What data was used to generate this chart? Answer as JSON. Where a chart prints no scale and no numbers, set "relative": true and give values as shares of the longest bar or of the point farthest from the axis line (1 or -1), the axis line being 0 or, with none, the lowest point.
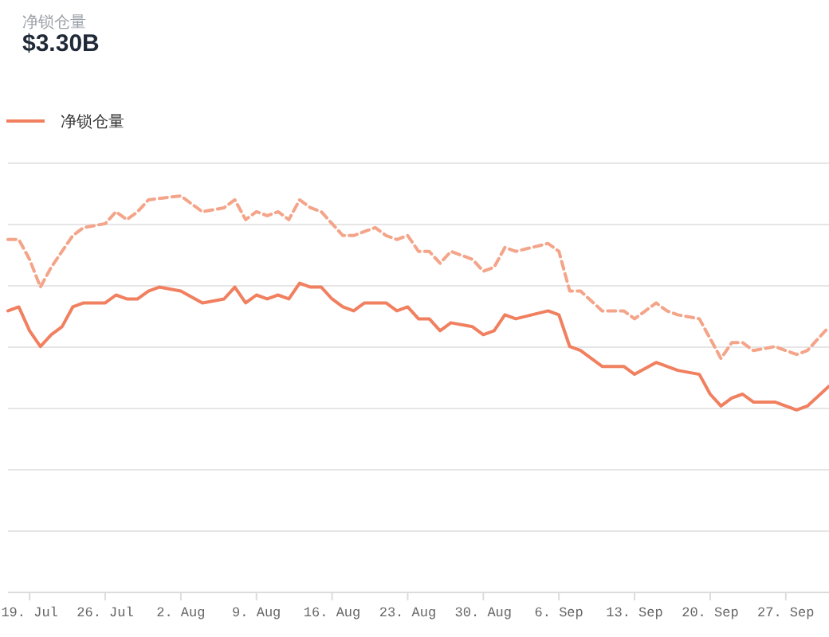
{
  "chart_data": {
    "type": "line",
    "title": "净锁仓量",
    "subtitle": "$3.30B",
    "relative": true,
    "grid": "y",
    "legend": "top left",
    "marker": "none",
    "xlim": [
      "--07-17",
      "--10-01"
    ],
    "xticks": [
      {
        "value": "--07-19",
        "label": "19. Jul"
      },
      {
        "value": "--07-26",
        "label": "26. Jul"
      },
      {
        "value": "--08-02",
        "label": "2. Aug"
      },
      {
        "value": "--08-09",
        "label": "9. Aug"
      },
      {
        "value": "--08-16",
        "label": "16. Aug"
      },
      {
        "value": "--08-23",
        "label": "23. Aug"
      },
      {
        "value": "--08-30",
        "label": "30. Aug"
      },
      {
        "value": "--09-06",
        "label": "6. Sep"
      },
      {
        "value": "--09-13",
        "label": "13. Sep"
      },
      {
        "value": "--09-20",
        "label": "20. Sep"
      },
      {
        "value": "--09-27",
        "label": "27. Sep"
      }
    ],
    "series": [
      {
        "name": "净锁仓量",
        "color": "#f0805f",
        "line_style": "solid",
        "x": [
          "--07-17",
          "--07-18",
          "--07-19",
          "--07-20",
          "--07-21",
          "--07-22",
          "--07-23",
          "--07-24",
          "--07-26",
          "--07-27",
          "--07-28",
          "--07-29",
          "--07-30",
          "--07-31",
          "--08-02",
          "--08-04",
          "--08-06",
          "--08-07",
          "--08-08",
          "--08-09",
          "--08-10",
          "--08-11",
          "--08-12",
          "--08-13",
          "--08-14",
          "--08-15",
          "--08-16",
          "--08-17",
          "--08-18",
          "--08-19",
          "--08-20",
          "--08-21",
          "--08-22",
          "--08-23",
          "--08-24",
          "--08-25",
          "--08-26",
          "--08-27",
          "--08-29",
          "--08-30",
          "--08-31",
          "--09-01",
          "--09-02",
          "--09-05",
          "--09-06",
          "--09-07",
          "--09-08",
          "--09-10",
          "--09-12",
          "--09-13",
          "--09-15",
          "--09-16",
          "--09-17",
          "--09-19",
          "--09-20",
          "--09-21",
          "--09-22",
          "--09-23",
          "--09-24",
          "--09-26",
          "--09-27",
          "--09-28",
          "--09-29",
          "--10-01"
        ],
        "values": [
          0.71,
          0.72,
          0.66,
          0.62,
          0.65,
          0.67,
          0.72,
          0.73,
          0.73,
          0.75,
          0.74,
          0.74,
          0.76,
          0.77,
          0.76,
          0.73,
          0.74,
          0.77,
          0.73,
          0.75,
          0.74,
          0.75,
          0.74,
          0.78,
          0.77,
          0.77,
          0.74,
          0.72,
          0.71,
          0.73,
          0.73,
          0.73,
          0.71,
          0.72,
          0.69,
          0.69,
          0.66,
          0.68,
          0.67,
          0.65,
          0.66,
          0.7,
          0.69,
          0.71,
          0.7,
          0.62,
          0.61,
          0.57,
          0.57,
          0.55,
          0.58,
          0.57,
          0.56,
          0.55,
          0.5,
          0.47,
          0.49,
          0.5,
          0.48,
          0.48,
          0.47,
          0.46,
          0.47,
          0.52
        ]
      },
      {
        "color": "#f4a489",
        "line_style": "dashed",
        "x": [
          "--07-17",
          "--07-18",
          "--07-19",
          "--07-20",
          "--07-21",
          "--07-22",
          "--07-23",
          "--07-24",
          "--07-26",
          "--07-27",
          "--07-28",
          "--07-29",
          "--07-30",
          "--08-02",
          "--08-04",
          "--08-06",
          "--08-07",
          "--08-08",
          "--08-09",
          "--08-10",
          "--08-11",
          "--08-12",
          "--08-13",
          "--08-14",
          "--08-15",
          "--08-17",
          "--08-18",
          "--08-20",
          "--08-21",
          "--08-22",
          "--08-23",
          "--08-24",
          "--08-25",
          "--08-26",
          "--08-27",
          "--08-29",
          "--08-30",
          "--08-31",
          "--09-01",
          "--09-02",
          "--09-05",
          "--09-06",
          "--09-07",
          "--09-08",
          "--09-10",
          "--09-12",
          "--09-13",
          "--09-15",
          "--09-16",
          "--09-17",
          "--09-19",
          "--09-20",
          "--09-21",
          "--09-22",
          "--09-23",
          "--09-24",
          "--09-26",
          "--09-28",
          "--09-29",
          "--10-01"
        ],
        "values": [
          0.89,
          0.89,
          0.84,
          0.77,
          0.82,
          0.86,
          0.9,
          0.92,
          0.93,
          0.96,
          0.94,
          0.96,
          0.99,
          1.0,
          0.96,
          0.97,
          0.99,
          0.94,
          0.96,
          0.95,
          0.96,
          0.94,
          0.99,
          0.97,
          0.96,
          0.9,
          0.9,
          0.92,
          0.9,
          0.89,
          0.9,
          0.86,
          0.86,
          0.83,
          0.86,
          0.84,
          0.81,
          0.82,
          0.87,
          0.86,
          0.88,
          0.86,
          0.76,
          0.76,
          0.71,
          0.71,
          0.69,
          0.73,
          0.71,
          0.7,
          0.69,
          0.64,
          0.59,
          0.63,
          0.63,
          0.61,
          0.62,
          0.6,
          0.61,
          0.67
        ]
      }
    ]
  }
}
